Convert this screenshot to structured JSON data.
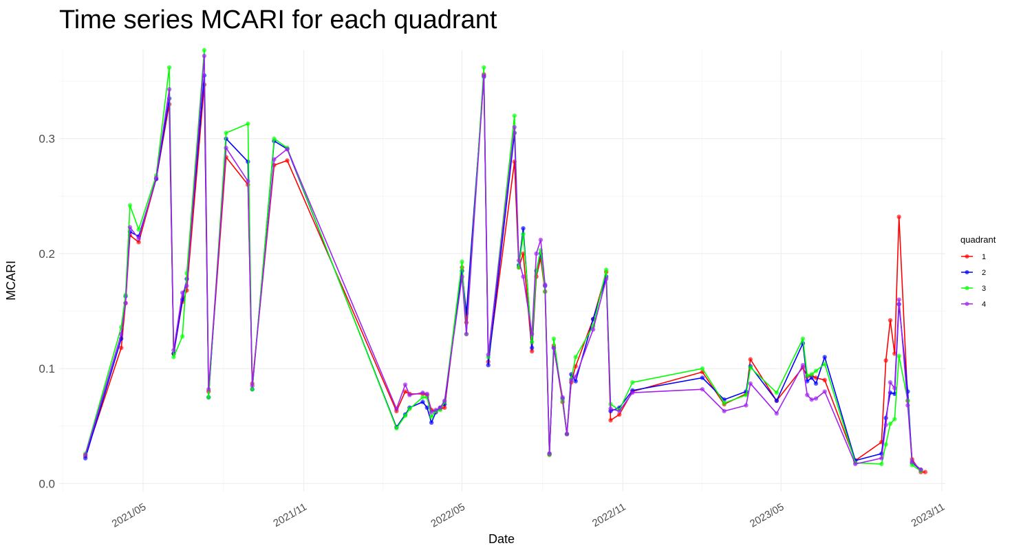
{
  "chart_data": {
    "type": "line",
    "title": "Time series MCARI for each quadrant",
    "xlabel": "Date",
    "ylabel": "MCARI",
    "xlim": [
      "2021-01-25",
      "2023-11-05"
    ],
    "ylim": [
      -0.007,
      0.377
    ],
    "y_ticks": [
      0.0,
      0.1,
      0.2,
      0.3
    ],
    "y_tick_labels": [
      "0.0",
      "0.1",
      "0.2",
      "0.3"
    ],
    "x_ticks": [
      "2021-05-01",
      "2021-11-01",
      "2022-05-01",
      "2022-11-01",
      "2023-05-01",
      "2023-11-01"
    ],
    "x_tick_labels": [
      "2021/05",
      "2021/11",
      "2022/05",
      "2022/11",
      "2023/05",
      "2023/11"
    ],
    "grid": true,
    "legend": {
      "title": "quadrant",
      "position": "right"
    },
    "series": [
      {
        "name": "1",
        "color": "#ff0000",
        "points": [
          [
            "2021-02-24",
            0.024
          ],
          [
            "2021-04-06",
            0.118
          ],
          [
            "2021-04-11",
            0.157
          ],
          [
            "2021-04-16",
            0.216
          ],
          [
            "2021-04-26",
            0.21
          ],
          [
            "2021-05-16",
            0.265
          ],
          [
            "2021-05-31",
            0.33
          ],
          [
            "2021-06-05",
            0.113
          ],
          [
            "2021-06-15",
            0.158
          ],
          [
            "2021-06-20",
            0.168
          ],
          [
            "2021-07-10",
            0.347
          ],
          [
            "2021-07-15",
            0.08
          ],
          [
            "2021-08-04",
            0.284
          ],
          [
            "2021-08-29",
            0.26
          ],
          [
            "2021-09-03",
            0.087
          ],
          [
            "2021-09-28",
            0.277
          ],
          [
            "2021-10-13",
            0.281
          ],
          [
            "2022-02-15",
            0.063
          ],
          [
            "2022-02-25",
            0.08
          ],
          [
            "2022-03-02",
            0.078
          ],
          [
            "2022-03-17",
            0.078
          ],
          [
            "2022-03-22",
            0.077
          ],
          [
            "2022-03-27",
            0.064
          ],
          [
            "2022-04-01",
            0.063
          ],
          [
            "2022-04-06",
            0.065
          ],
          [
            "2022-04-11",
            0.066
          ],
          [
            "2022-05-01",
            0.188
          ],
          [
            "2022-05-06",
            0.14
          ],
          [
            "2022-05-26",
            0.356
          ],
          [
            "2022-05-31",
            0.106
          ],
          [
            "2022-06-30",
            0.28
          ],
          [
            "2022-07-05",
            0.188
          ],
          [
            "2022-07-10",
            0.2
          ],
          [
            "2022-07-20",
            0.115
          ],
          [
            "2022-07-25",
            0.18
          ],
          [
            "2022-07-30",
            0.196
          ],
          [
            "2022-08-04",
            0.167
          ],
          [
            "2022-08-09",
            0.025
          ],
          [
            "2022-08-14",
            0.12
          ],
          [
            "2022-08-24",
            0.071
          ],
          [
            "2022-08-29",
            0.043
          ],
          [
            "2022-09-03",
            0.088
          ],
          [
            "2022-09-08",
            0.102
          ],
          [
            "2022-09-28",
            0.143
          ],
          [
            "2022-10-13",
            0.184
          ],
          [
            "2022-10-18",
            0.055
          ],
          [
            "2022-10-28",
            0.06
          ],
          [
            "2022-11-12",
            0.08
          ],
          [
            "2023-01-31",
            0.097
          ],
          [
            "2023-02-25",
            0.069
          ],
          [
            "2023-03-22",
            0.078
          ],
          [
            "2023-03-27",
            0.108
          ],
          [
            "2023-04-26",
            0.072
          ],
          [
            "2023-05-26",
            0.101
          ],
          [
            "2023-05-31",
            0.093
          ],
          [
            "2023-06-05",
            0.094
          ],
          [
            "2023-06-10",
            0.092
          ],
          [
            "2023-06-20",
            0.09
          ],
          [
            "2023-07-25",
            0.02
          ],
          [
            "2023-08-24",
            0.036
          ],
          [
            "2023-08-29",
            0.107
          ],
          [
            "2023-09-03",
            0.142
          ],
          [
            "2023-09-08",
            0.113
          ],
          [
            "2023-09-13",
            0.232
          ],
          [
            "2023-09-23",
            0.072
          ],
          [
            "2023-09-28",
            0.021
          ],
          [
            "2023-10-08",
            0.01
          ],
          [
            "2023-10-13",
            0.01
          ]
        ]
      },
      {
        "name": "2",
        "color": "#0000ff",
        "points": [
          [
            "2021-02-24",
            0.022
          ],
          [
            "2021-04-06",
            0.126
          ],
          [
            "2021-04-11",
            0.163
          ],
          [
            "2021-04-16",
            0.219
          ],
          [
            "2021-04-26",
            0.215
          ],
          [
            "2021-05-16",
            0.265
          ],
          [
            "2021-05-31",
            0.335
          ],
          [
            "2021-06-05",
            0.113
          ],
          [
            "2021-06-15",
            0.16
          ],
          [
            "2021-06-20",
            0.178
          ],
          [
            "2021-07-10",
            0.355
          ],
          [
            "2021-07-15",
            0.075
          ],
          [
            "2021-08-04",
            0.3
          ],
          [
            "2021-08-29",
            0.28
          ],
          [
            "2021-09-03",
            0.082
          ],
          [
            "2021-09-28",
            0.298
          ],
          [
            "2021-10-13",
            0.291
          ],
          [
            "2022-02-15",
            0.049
          ],
          [
            "2022-02-25",
            0.06
          ],
          [
            "2022-03-02",
            0.066
          ],
          [
            "2022-03-17",
            0.071
          ],
          [
            "2022-03-22",
            0.066
          ],
          [
            "2022-03-27",
            0.053
          ],
          [
            "2022-04-01",
            0.062
          ],
          [
            "2022-04-06",
            0.066
          ],
          [
            "2022-04-11",
            0.069
          ],
          [
            "2022-05-01",
            0.185
          ],
          [
            "2022-05-06",
            0.148
          ],
          [
            "2022-05-26",
            0.354
          ],
          [
            "2022-05-31",
            0.103
          ],
          [
            "2022-06-30",
            0.305
          ],
          [
            "2022-07-05",
            0.19
          ],
          [
            "2022-07-10",
            0.222
          ],
          [
            "2022-07-20",
            0.118
          ],
          [
            "2022-07-25",
            0.185
          ],
          [
            "2022-07-30",
            0.2
          ],
          [
            "2022-08-04",
            0.172
          ],
          [
            "2022-08-09",
            0.026
          ],
          [
            "2022-08-14",
            0.118
          ],
          [
            "2022-08-24",
            0.074
          ],
          [
            "2022-08-29",
            0.043
          ],
          [
            "2022-09-03",
            0.095
          ],
          [
            "2022-09-08",
            0.089
          ],
          [
            "2022-09-28",
            0.143
          ],
          [
            "2022-10-13",
            0.18
          ],
          [
            "2022-10-18",
            0.063
          ],
          [
            "2022-10-28",
            0.066
          ],
          [
            "2022-11-12",
            0.081
          ],
          [
            "2023-01-31",
            0.092
          ],
          [
            "2023-02-25",
            0.073
          ],
          [
            "2023-03-22",
            0.08
          ],
          [
            "2023-03-27",
            0.102
          ],
          [
            "2023-04-26",
            0.072
          ],
          [
            "2023-05-26",
            0.122
          ],
          [
            "2023-05-31",
            0.089
          ],
          [
            "2023-06-05",
            0.092
          ],
          [
            "2023-06-10",
            0.087
          ],
          [
            "2023-06-20",
            0.11
          ],
          [
            "2023-07-25",
            0.02
          ],
          [
            "2023-08-24",
            0.026
          ],
          [
            "2023-08-29",
            0.057
          ],
          [
            "2023-09-03",
            0.079
          ],
          [
            "2023-09-08",
            0.078
          ],
          [
            "2023-09-13",
            0.156
          ],
          [
            "2023-09-23",
            0.08
          ],
          [
            "2023-09-28",
            0.018
          ],
          [
            "2023-10-08",
            0.012
          ]
        ]
      },
      {
        "name": "3",
        "color": "#00ff00",
        "points": [
          [
            "2021-02-24",
            0.026
          ],
          [
            "2021-04-06",
            0.136
          ],
          [
            "2021-04-11",
            0.164
          ],
          [
            "2021-04-16",
            0.242
          ],
          [
            "2021-04-26",
            0.221
          ],
          [
            "2021-05-16",
            0.268
          ],
          [
            "2021-05-31",
            0.362
          ],
          [
            "2021-06-05",
            0.11
          ],
          [
            "2021-06-15",
            0.128
          ],
          [
            "2021-06-20",
            0.183
          ],
          [
            "2021-07-10",
            0.377
          ],
          [
            "2021-07-15",
            0.075
          ],
          [
            "2021-08-04",
            0.305
          ],
          [
            "2021-08-29",
            0.313
          ],
          [
            "2021-09-03",
            0.082
          ],
          [
            "2021-09-28",
            0.3
          ],
          [
            "2021-10-13",
            0.292
          ],
          [
            "2022-02-15",
            0.048
          ],
          [
            "2022-02-25",
            0.059
          ],
          [
            "2022-03-02",
            0.065
          ],
          [
            "2022-03-17",
            0.075
          ],
          [
            "2022-03-22",
            0.075
          ],
          [
            "2022-03-27",
            0.058
          ],
          [
            "2022-04-01",
            0.063
          ],
          [
            "2022-04-06",
            0.064
          ],
          [
            "2022-04-11",
            0.071
          ],
          [
            "2022-05-01",
            0.193
          ],
          [
            "2022-05-06",
            0.13
          ],
          [
            "2022-05-26",
            0.362
          ],
          [
            "2022-05-31",
            0.11
          ],
          [
            "2022-06-30",
            0.32
          ],
          [
            "2022-07-05",
            0.188
          ],
          [
            "2022-07-10",
            0.217
          ],
          [
            "2022-07-20",
            0.123
          ],
          [
            "2022-07-25",
            0.185
          ],
          [
            "2022-07-30",
            0.203
          ],
          [
            "2022-08-04",
            0.167
          ],
          [
            "2022-08-09",
            0.025
          ],
          [
            "2022-08-14",
            0.126
          ],
          [
            "2022-08-24",
            0.072
          ],
          [
            "2022-08-29",
            0.043
          ],
          [
            "2022-09-03",
            0.091
          ],
          [
            "2022-09-08",
            0.11
          ],
          [
            "2022-09-28",
            0.137
          ],
          [
            "2022-10-13",
            0.186
          ],
          [
            "2022-10-18",
            0.069
          ],
          [
            "2022-10-28",
            0.064
          ],
          [
            "2022-11-12",
            0.088
          ],
          [
            "2023-01-31",
            0.1
          ],
          [
            "2023-02-25",
            0.07
          ],
          [
            "2023-03-22",
            0.077
          ],
          [
            "2023-03-27",
            0.101
          ],
          [
            "2023-04-26",
            0.079
          ],
          [
            "2023-05-26",
            0.126
          ],
          [
            "2023-05-31",
            0.094
          ],
          [
            "2023-06-05",
            0.095
          ],
          [
            "2023-06-10",
            0.098
          ],
          [
            "2023-06-20",
            0.104
          ],
          [
            "2023-07-25",
            0.018
          ],
          [
            "2023-08-24",
            0.017
          ],
          [
            "2023-08-29",
            0.034
          ],
          [
            "2023-09-03",
            0.052
          ],
          [
            "2023-09-08",
            0.056
          ],
          [
            "2023-09-13",
            0.111
          ],
          [
            "2023-09-23",
            0.072
          ],
          [
            "2023-09-28",
            0.016
          ],
          [
            "2023-10-08",
            0.011
          ]
        ]
      },
      {
        "name": "4",
        "color": "#a020f0",
        "points": [
          [
            "2021-02-24",
            0.025
          ],
          [
            "2021-04-06",
            0.13
          ],
          [
            "2021-04-11",
            0.157
          ],
          [
            "2021-04-16",
            0.223
          ],
          [
            "2021-04-26",
            0.213
          ],
          [
            "2021-05-16",
            0.266
          ],
          [
            "2021-05-31",
            0.343
          ],
          [
            "2021-06-05",
            0.116
          ],
          [
            "2021-06-15",
            0.166
          ],
          [
            "2021-06-20",
            0.172
          ],
          [
            "2021-07-10",
            0.372
          ],
          [
            "2021-07-15",
            0.082
          ],
          [
            "2021-08-04",
            0.292
          ],
          [
            "2021-08-29",
            0.263
          ],
          [
            "2021-09-03",
            0.085
          ],
          [
            "2021-09-28",
            0.282
          ],
          [
            "2021-10-13",
            0.291
          ],
          [
            "2022-02-15",
            0.065
          ],
          [
            "2022-02-25",
            0.086
          ],
          [
            "2022-03-02",
            0.077
          ],
          [
            "2022-03-17",
            0.079
          ],
          [
            "2022-03-22",
            0.078
          ],
          [
            "2022-03-27",
            0.062
          ],
          [
            "2022-04-01",
            0.064
          ],
          [
            "2022-04-06",
            0.066
          ],
          [
            "2022-04-11",
            0.072
          ],
          [
            "2022-05-01",
            0.18
          ],
          [
            "2022-05-06",
            0.13
          ],
          [
            "2022-05-26",
            0.355
          ],
          [
            "2022-05-31",
            0.112
          ],
          [
            "2022-06-30",
            0.31
          ],
          [
            "2022-07-05",
            0.194
          ],
          [
            "2022-07-10",
            0.18
          ],
          [
            "2022-07-20",
            0.13
          ],
          [
            "2022-07-25",
            0.2
          ],
          [
            "2022-07-30",
            0.212
          ],
          [
            "2022-08-04",
            0.173
          ],
          [
            "2022-08-09",
            0.026
          ],
          [
            "2022-08-14",
            0.118
          ],
          [
            "2022-08-24",
            0.075
          ],
          [
            "2022-08-29",
            0.043
          ],
          [
            "2022-09-03",
            0.09
          ],
          [
            "2022-09-08",
            0.093
          ],
          [
            "2022-09-28",
            0.134
          ],
          [
            "2022-10-13",
            0.178
          ],
          [
            "2022-10-18",
            0.065
          ],
          [
            "2022-10-28",
            0.063
          ],
          [
            "2022-11-12",
            0.079
          ],
          [
            "2023-01-31",
            0.082
          ],
          [
            "2023-02-25",
            0.063
          ],
          [
            "2023-03-22",
            0.068
          ],
          [
            "2023-03-27",
            0.087
          ],
          [
            "2023-04-26",
            0.061
          ],
          [
            "2023-05-26",
            0.103
          ],
          [
            "2023-05-31",
            0.077
          ],
          [
            "2023-06-05",
            0.073
          ],
          [
            "2023-06-10",
            0.074
          ],
          [
            "2023-06-20",
            0.08
          ],
          [
            "2023-07-25",
            0.017
          ],
          [
            "2023-08-24",
            0.022
          ],
          [
            "2023-08-29",
            0.051
          ],
          [
            "2023-09-03",
            0.088
          ],
          [
            "2023-09-08",
            0.083
          ],
          [
            "2023-09-13",
            0.16
          ],
          [
            "2023-09-23",
            0.068
          ],
          [
            "2023-09-28",
            0.019
          ],
          [
            "2023-10-08",
            0.012
          ]
        ]
      }
    ]
  }
}
